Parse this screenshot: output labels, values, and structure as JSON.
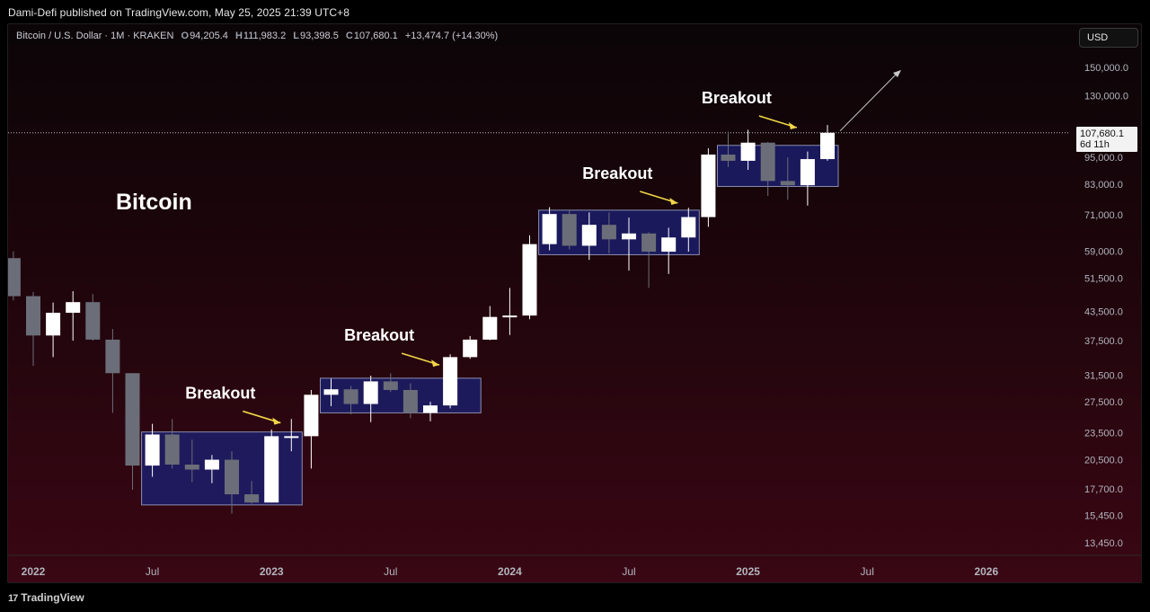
{
  "publisher_line": "Dami-Defi published on TradingView.com, May 25, 2025 21:39 UTC+8",
  "legend": {
    "symbol": "Bitcoin / U.S. Dollar · 1M · KRAKEN",
    "open_label": "O",
    "open": "94,205.4",
    "high_label": "H",
    "high": "111,983.2",
    "low_label": "L",
    "low": "93,398.5",
    "close_label": "C",
    "close": "107,680.1",
    "change": "+13,474.7 (+14.30%)"
  },
  "currency_button": "USD",
  "footer_brand": "TradingView",
  "footer_mark": "17",
  "price_tag": {
    "price": "107,680.1",
    "countdown": "6d 11h"
  },
  "colors": {
    "up": "#ffffff",
    "down": "#6b6e78",
    "zone_fill": "#1b1e6e",
    "zone_border": "#8a8fb0",
    "annotation_arrow": "#f2d648",
    "trend_arrow": "#c8c8c8",
    "axis_text": "#b2b5be"
  },
  "chart_data": {
    "type": "candlestick",
    "title": "Bitcoin",
    "scale": "log",
    "interval": "1M",
    "y_ticks": [
      "150,000.0",
      "130,000.0",
      "95,000.0",
      "83,000.0",
      "71,000.0",
      "59,000.0",
      "51,500.0",
      "43,500.0",
      "37,500.0",
      "31,500.0",
      "27,500.0",
      "23,500.0",
      "20,500.0",
      "17,700.0",
      "15,450.0",
      "13,450.0"
    ],
    "x_ticks": [
      "2022",
      "Jul",
      "2023",
      "Jul",
      "2024",
      "Jul",
      "2025",
      "Jul",
      "2026"
    ],
    "x_tick_months": [
      "2022-01",
      "2022-07",
      "2023-01",
      "2023-07",
      "2024-01",
      "2024-07",
      "2025-01",
      "2025-07",
      "2026-01"
    ],
    "last_price": 107680.1,
    "candles": [
      {
        "t": "2021-12",
        "o": 57000,
        "h": 59000,
        "l": 46000,
        "c": 47000
      },
      {
        "t": "2022-01",
        "o": 47000,
        "h": 48000,
        "l": 33000,
        "c": 38500
      },
      {
        "t": "2022-02",
        "o": 38500,
        "h": 45500,
        "l": 34500,
        "c": 43200
      },
      {
        "t": "2022-03",
        "o": 43200,
        "h": 48200,
        "l": 37500,
        "c": 45600
      },
      {
        "t": "2022-04",
        "o": 45600,
        "h": 47500,
        "l": 37500,
        "c": 37700
      },
      {
        "t": "2022-05",
        "o": 37700,
        "h": 39800,
        "l": 26000,
        "c": 31800
      },
      {
        "t": "2022-06",
        "o": 31800,
        "h": 31800,
        "l": 17600,
        "c": 19900
      },
      {
        "t": "2022-07",
        "o": 19900,
        "h": 24600,
        "l": 18800,
        "c": 23300
      },
      {
        "t": "2022-08",
        "o": 23300,
        "h": 25200,
        "l": 19600,
        "c": 20000
      },
      {
        "t": "2022-09",
        "o": 20000,
        "h": 22700,
        "l": 18300,
        "c": 19500
      },
      {
        "t": "2022-10",
        "o": 19500,
        "h": 21000,
        "l": 18200,
        "c": 20500
      },
      {
        "t": "2022-11",
        "o": 20500,
        "h": 21400,
        "l": 15600,
        "c": 17200
      },
      {
        "t": "2022-12",
        "o": 17200,
        "h": 18400,
        "l": 16400,
        "c": 16500
      },
      {
        "t": "2023-01",
        "o": 16500,
        "h": 23900,
        "l": 16500,
        "c": 23100
      },
      {
        "t": "2023-02",
        "o": 23100,
        "h": 25200,
        "l": 21400,
        "c": 23100
      },
      {
        "t": "2023-03",
        "o": 23100,
        "h": 29200,
        "l": 19600,
        "c": 28500
      },
      {
        "t": "2023-04",
        "o": 28500,
        "h": 30900,
        "l": 26900,
        "c": 29300
      },
      {
        "t": "2023-05",
        "o": 29300,
        "h": 29800,
        "l": 25800,
        "c": 27200
      },
      {
        "t": "2023-06",
        "o": 27200,
        "h": 31400,
        "l": 24800,
        "c": 30500
      },
      {
        "t": "2023-07",
        "o": 30500,
        "h": 31800,
        "l": 28900,
        "c": 29200
      },
      {
        "t": "2023-08",
        "o": 29200,
        "h": 30200,
        "l": 25300,
        "c": 26000
      },
      {
        "t": "2023-09",
        "o": 26000,
        "h": 27500,
        "l": 24900,
        "c": 27000
      },
      {
        "t": "2023-10",
        "o": 27000,
        "h": 35000,
        "l": 26600,
        "c": 34500
      },
      {
        "t": "2023-11",
        "o": 34500,
        "h": 38400,
        "l": 34200,
        "c": 37700
      },
      {
        "t": "2023-12",
        "o": 37700,
        "h": 44700,
        "l": 37600,
        "c": 42300
      },
      {
        "t": "2024-01",
        "o": 42300,
        "h": 49000,
        "l": 38600,
        "c": 42600
      },
      {
        "t": "2024-02",
        "o": 42600,
        "h": 64000,
        "l": 41800,
        "c": 61200
      },
      {
        "t": "2024-03",
        "o": 61200,
        "h": 73800,
        "l": 59300,
        "c": 71300
      },
      {
        "t": "2024-04",
        "o": 71300,
        "h": 72700,
        "l": 59600,
        "c": 60700
      },
      {
        "t": "2024-05",
        "o": 60700,
        "h": 71900,
        "l": 56500,
        "c": 67500
      },
      {
        "t": "2024-06",
        "o": 67500,
        "h": 71900,
        "l": 58400,
        "c": 62700
      },
      {
        "t": "2024-07",
        "o": 62700,
        "h": 70000,
        "l": 53500,
        "c": 64600
      },
      {
        "t": "2024-08",
        "o": 64600,
        "h": 65000,
        "l": 49000,
        "c": 58900
      },
      {
        "t": "2024-09",
        "o": 58900,
        "h": 66500,
        "l": 52600,
        "c": 63300
      },
      {
        "t": "2024-10",
        "o": 63300,
        "h": 73600,
        "l": 58900,
        "c": 70200
      },
      {
        "t": "2024-11",
        "o": 70200,
        "h": 99500,
        "l": 66800,
        "c": 96400
      },
      {
        "t": "2024-12",
        "o": 96400,
        "h": 108300,
        "l": 90500,
        "c": 93400
      },
      {
        "t": "2025-01",
        "o": 93400,
        "h": 109300,
        "l": 89200,
        "c": 102400
      },
      {
        "t": "2025-02",
        "o": 102400,
        "h": 102800,
        "l": 78200,
        "c": 84300
      },
      {
        "t": "2025-03",
        "o": 84300,
        "h": 95000,
        "l": 76600,
        "c": 82500
      },
      {
        "t": "2025-04",
        "o": 82500,
        "h": 97900,
        "l": 74400,
        "c": 94200
      },
      {
        "t": "2025-05",
        "o": 94205.4,
        "h": 111983.2,
        "l": 93398.5,
        "c": 107680.1
      }
    ],
    "zones": [
      {
        "from": "2022-07",
        "to": "2023-02",
        "low": 16300,
        "high": 23600
      },
      {
        "from": "2023-04",
        "to": "2023-11",
        "low": 26000,
        "high": 31000
      },
      {
        "from": "2024-03",
        "to": "2024-10",
        "low": 58000,
        "high": 72700
      },
      {
        "from": "2024-12",
        "to": "2025-05",
        "low": 82000,
        "high": 101000
      }
    ],
    "annotations": [
      {
        "text": "Breakout",
        "t": "2023-02",
        "price": 24600
      },
      {
        "text": "Breakout",
        "t": "2023-10",
        "price": 33000
      },
      {
        "text": "Breakout",
        "t": "2024-10",
        "price": 75000
      },
      {
        "text": "Breakout",
        "t": "2025-04",
        "price": 110000
      }
    ]
  }
}
